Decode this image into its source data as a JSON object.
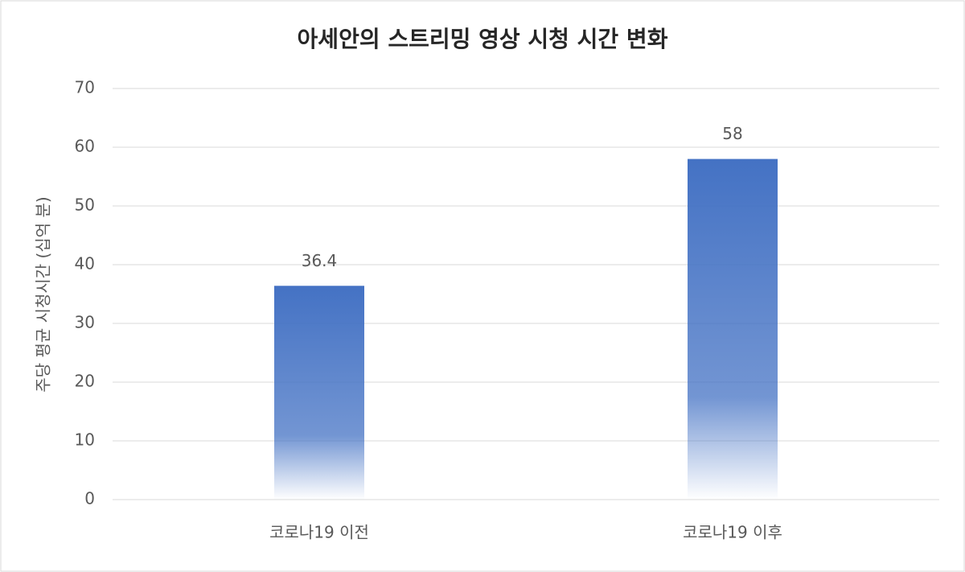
{
  "chart_data": {
    "type": "bar",
    "title": "아세안의 스트리밍 영상 시청 시간 변화",
    "y_label": "주당 평균 시청시간 (십억 분)",
    "categories": [
      "코로나19 이전",
      "코로나19 이후"
    ],
    "values": [
      36.4,
      58
    ],
    "color": "#4472c4",
    "ylim": [
      0,
      70
    ],
    "yticks": [
      0,
      10,
      20,
      30,
      40,
      50,
      60,
      70
    ],
    "grid": true
  }
}
